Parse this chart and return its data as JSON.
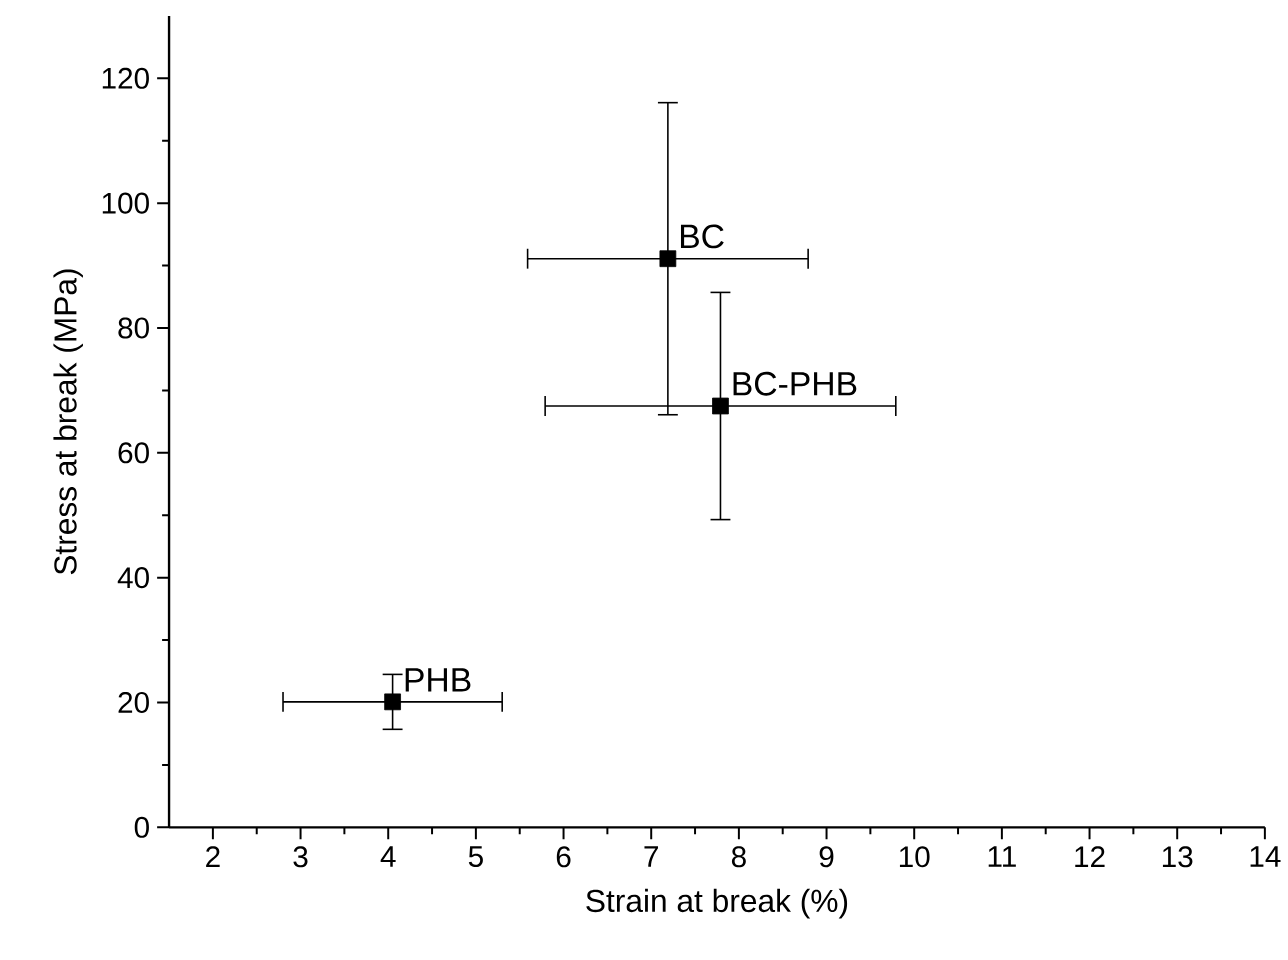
{
  "chart_data": {
    "type": "scatter",
    "xlabel": "Strain at break (%)",
    "ylabel": "Stress at break (MPa)",
    "x": [
      4.05,
      7.19,
      7.79
    ],
    "values": [
      20.1,
      91.1,
      67.5
    ],
    "xerrors": [
      1.25,
      1.6,
      2.0
    ],
    "errors": [
      4.4,
      25.0,
      18.2
    ],
    "color": "#000000",
    "marker": "square",
    "xlim": [
      1.5,
      14
    ],
    "ylim": [
      0,
      130
    ],
    "xticks": [
      2,
      3,
      4,
      5,
      6,
      7,
      8,
      9,
      10,
      11,
      12,
      13,
      14
    ],
    "yticks": [
      0,
      20,
      40,
      60,
      80,
      100,
      120
    ],
    "annotations": [
      {
        "text": "PHB",
        "x": 4.05,
        "y": 20.1
      },
      {
        "text": "BC",
        "x": 7.19,
        "y": 91.1
      },
      {
        "text": "BC-PHB",
        "x": 7.79,
        "y": 67.5
      }
    ]
  }
}
